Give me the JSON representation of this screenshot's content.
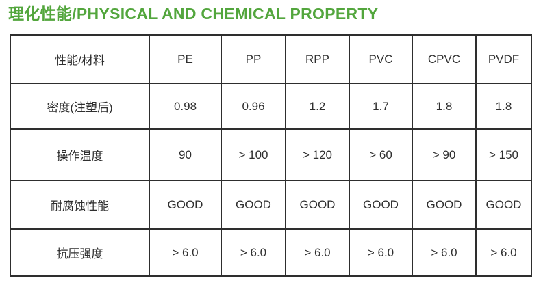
{
  "page_title": "理化性能/PHYSICAL AND CHEMICAL PROPERTY",
  "colors": {
    "title_green": "#53a63d",
    "table_border": "#2e2e2e",
    "cell_text": "#2f2f2f"
  },
  "table": {
    "header": [
      "性能/材料",
      "PE",
      "PP",
      "RPP",
      "PVC",
      "CPVC",
      "PVDF"
    ],
    "rows": [
      {
        "label": "密度(注塑后)",
        "values": [
          "0.98",
          "0.96",
          "1.2",
          "1.7",
          "1.8",
          "1.8"
        ]
      },
      {
        "label": "操作温度",
        "values": [
          "90",
          "> 100",
          "> 120",
          "> 60",
          "> 90",
          "> 150"
        ]
      },
      {
        "label": "耐腐蚀性能",
        "values": [
          "GOOD",
          "GOOD",
          "GOOD",
          "GOOD",
          "GOOD",
          "GOOD"
        ]
      },
      {
        "label": "抗压强度",
        "values": [
          "> 6.0",
          "> 6.0",
          "> 6.0",
          "> 6.0",
          "> 6.0",
          "> 6.0"
        ]
      }
    ]
  }
}
